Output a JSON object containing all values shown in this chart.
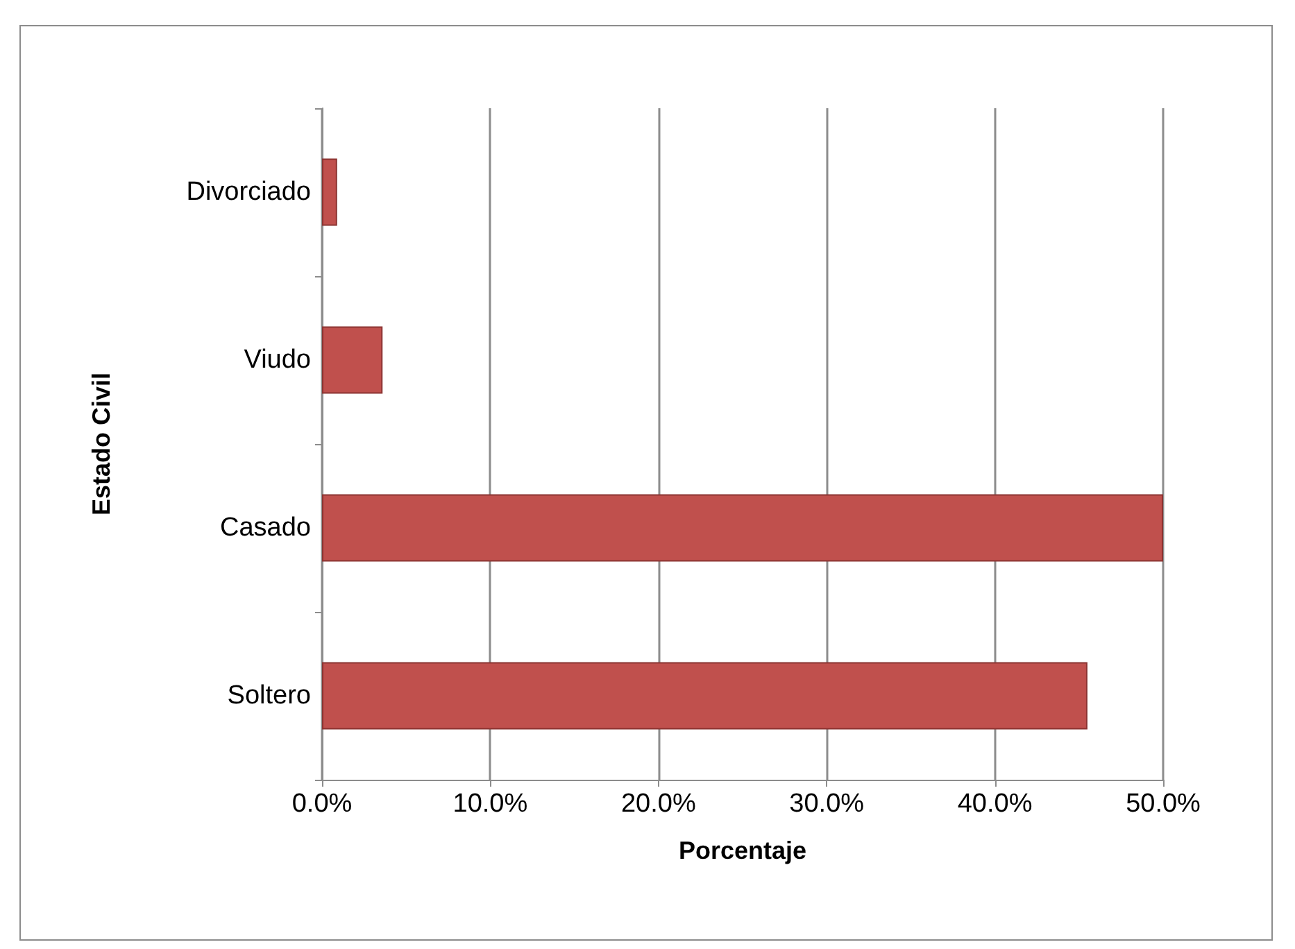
{
  "chart_data": {
    "type": "bar",
    "orientation": "horizontal",
    "xlabel": "Porcentaje",
    "ylabel": "Estado Civil",
    "categories": [
      "Divorciado",
      "Viudo",
      "Casado",
      "Soltero"
    ],
    "values": [
      0.9,
      3.6,
      50.0,
      45.5
    ],
    "color": "#c0504d",
    "xlim": [
      0,
      50
    ],
    "xticks": [
      {
        "value": 0,
        "label": "0.0%"
      },
      {
        "value": 10,
        "label": "10.0%"
      },
      {
        "value": 20,
        "label": "20.0%"
      },
      {
        "value": 30,
        "label": "30.0%"
      },
      {
        "value": 40,
        "label": "40.0%"
      },
      {
        "value": 50,
        "label": "50.0%"
      }
    ],
    "grid": "x"
  }
}
